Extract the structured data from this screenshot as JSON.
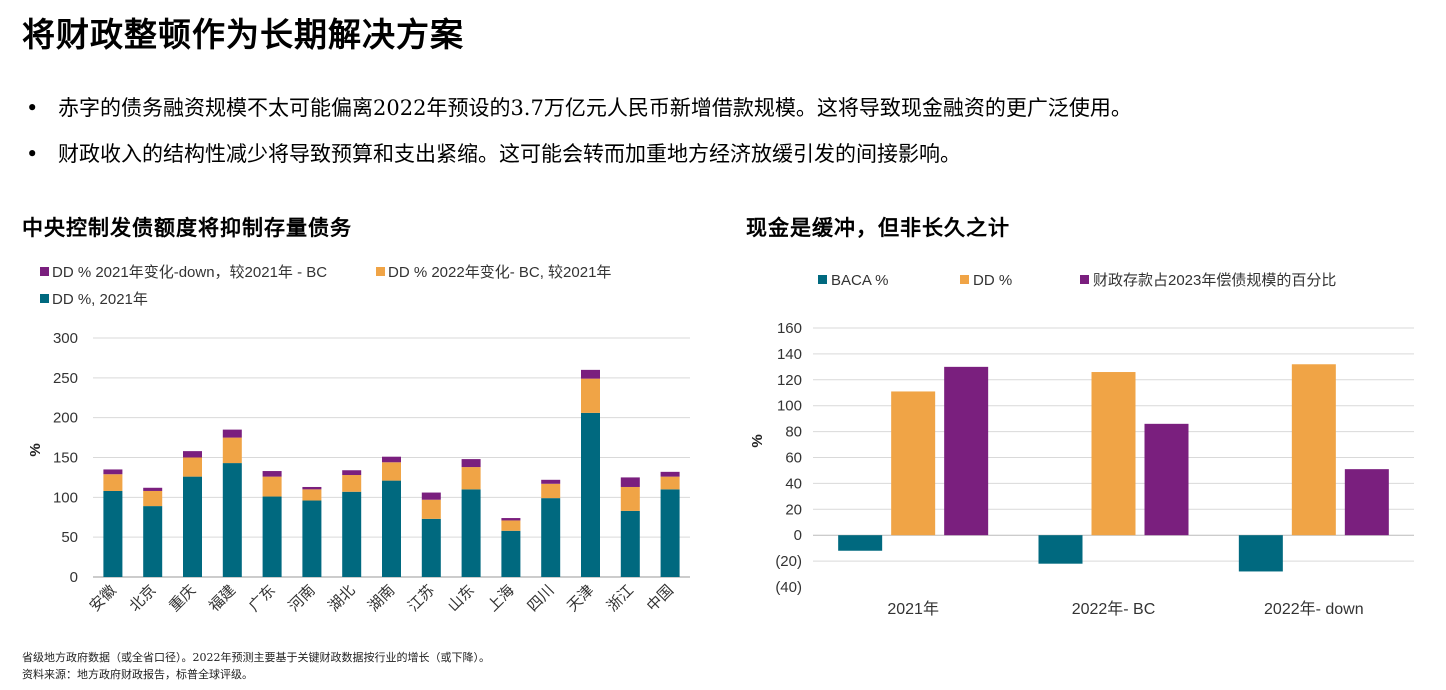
{
  "title": "将财政整顿作为长期解决方案",
  "bullets": [
    "赤字的债务融资规模不太可能偏离2022年预设的3.7万亿元人民币新增借款规模。这将导致现金融资的更广泛使用。",
    "财政收入的结构性减少将导致预算和支出紧缩。这可能会转而加重地方经济放缓引发的间接影响。"
  ],
  "left_title": "中央控制发债额度将抑制存量债务",
  "right_title": "现金是缓冲，但非长久之计",
  "bullet_symbol": "•",
  "footnotes": [
    "省级地方政府数据（或全省口径）。2022年预测主要基于关键财政数据按行业的增长（或下降）。",
    "资料来源：地方政府财政报告，标普全球评级。"
  ],
  "chart_data": [
    {
      "type": "bar",
      "stacked": true,
      "ylabel": "%",
      "ylim": [
        0,
        300
      ],
      "yticks": [
        0,
        50,
        100,
        150,
        200,
        250,
        300
      ],
      "grid": true,
      "legend": "top",
      "categories": [
        "安徽",
        "北京",
        "重庆",
        "福建",
        "广东",
        "河南",
        "湖北",
        "湖南",
        "江苏",
        "山东",
        "上海",
        "四川",
        "天津",
        "浙江",
        "中国"
      ],
      "series": [
        {
          "name": "DD %, 2021年",
          "color": "#00697F",
          "values": [
            108,
            89,
            126,
            143,
            101,
            96,
            107,
            121,
            73,
            110,
            58,
            99,
            206,
            83,
            110
          ]
        },
        {
          "name": "DD % 2022年变化- BC, 较2021年",
          "color": "#F0A446",
          "values": [
            21,
            19,
            24,
            32,
            25,
            14,
            21,
            23,
            24,
            28,
            13,
            18,
            43,
            30,
            16
          ]
        },
        {
          "name": "DD % 2021年变化-down，较2021年 - BC",
          "color": "#7A1F7E",
          "values": [
            6,
            4,
            8,
            10,
            7,
            3,
            6,
            7,
            9,
            10,
            3,
            5,
            11,
            12,
            6
          ]
        }
      ],
      "legend_order": [
        2,
        1,
        0
      ]
    },
    {
      "type": "bar",
      "ylabel": "%",
      "ylim": [
        -40,
        160
      ],
      "yticks": [
        160,
        140,
        120,
        100,
        80,
        60,
        40,
        20,
        0,
        -20,
        -40
      ],
      "ytick_labels": [
        "160",
        "140",
        "120",
        "100",
        "80",
        "60",
        "40",
        "20",
        "0",
        "(20)",
        "(40)"
      ],
      "grid": true,
      "legend": "top",
      "categories": [
        "2021年",
        "2022年- BC",
        "2022年- down"
      ],
      "series": [
        {
          "name": "BACA %",
          "color": "#00697F",
          "values": [
            -12,
            -22,
            -28
          ]
        },
        {
          "name": "DD %",
          "color": "#F0A446",
          "values": [
            111,
            126,
            132
          ]
        },
        {
          "name": "财政存款占2023年偿债规模的百分比",
          "color": "#7A1F7E",
          "values": [
            130,
            86,
            51
          ]
        }
      ]
    }
  ]
}
